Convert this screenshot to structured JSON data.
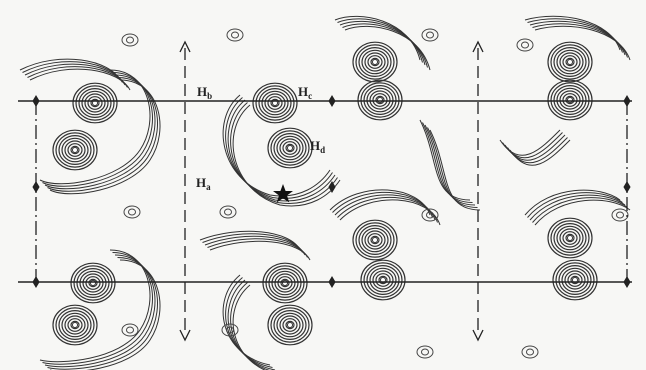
{
  "labels": [
    {
      "main": "H",
      "sub": "b"
    },
    {
      "main": "H",
      "sub": "c"
    },
    {
      "main": "H",
      "sub": "d"
    },
    {
      "main": "H",
      "sub": "a"
    }
  ]
}
